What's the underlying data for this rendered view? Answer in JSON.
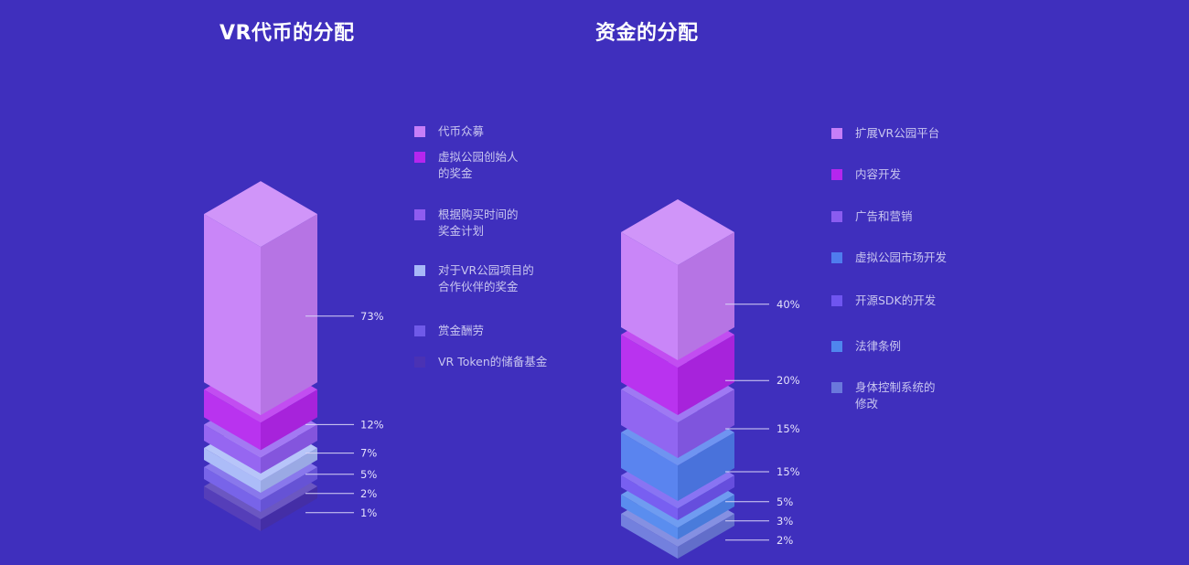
{
  "chart_data": [
    {
      "type": "bar",
      "title": "VR代币的分配",
      "categories": [
        "代币众募",
        "虚拟公园创始人\n的奖金",
        "根据购买时间的\n奖金计划",
        "对于VR公园项目的\n合作伙伴的奖金",
        "赏金酬劳",
        "VR Token的储备基金"
      ],
      "values": [
        73,
        12,
        7,
        5,
        2,
        1
      ],
      "value_labels": [
        "73%",
        "12%",
        "7%",
        "5%",
        "2%",
        "1%"
      ],
      "colors": [
        "#c67ef8",
        "#b526ee",
        "#8f5cf0",
        "#a7b8f8",
        "#6f5ae8",
        "#4a32b4"
      ],
      "unit": "%"
    },
    {
      "type": "bar",
      "title": "资金的分配",
      "categories": [
        "扩展VR公园平台",
        "内容开发",
        "广告和营销",
        "虚拟公园市场开发",
        "开源SDK的开发",
        "法律条例",
        "身体控制系统的\n修改"
      ],
      "values": [
        40,
        20,
        15,
        15,
        5,
        3,
        2
      ],
      "value_labels": [
        "40%",
        "20%",
        "15%",
        "15%",
        "5%",
        "3%",
        "2%"
      ],
      "colors": [
        "#c67ef8",
        "#b526ee",
        "#8a5cf0",
        "#4f7cee",
        "#6f55f0",
        "#4f86ee",
        "#6a78dc"
      ],
      "unit": "%"
    }
  ]
}
